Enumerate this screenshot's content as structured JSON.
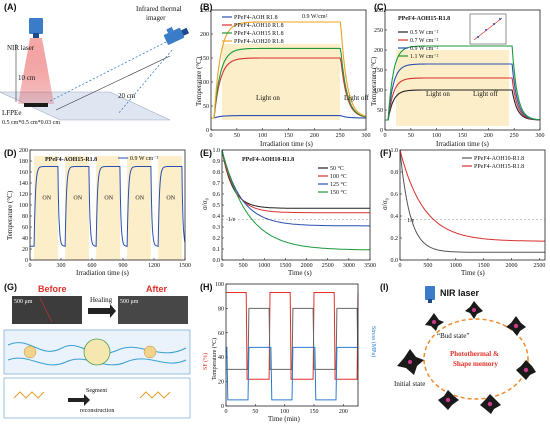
{
  "panels": {
    "A": {
      "label": "(A)",
      "nir": "NIR laser",
      "camera": "Infrared thermal imager",
      "dist1": "10 cm",
      "dist2": "20 cm",
      "sample": "LFPEe",
      "size": "0.5 cm*0.5 cm*0.03 cm"
    },
    "B": {
      "label": "(B)",
      "power": "0.9 W/cm²",
      "on": "Light on",
      "off": "Light off",
      "xlabel": "Irradiation time (s)",
      "ylabel": "Temperature (°C)"
    },
    "C": {
      "label": "(C)",
      "title": "PPeF4-AOH15-R1.8",
      "on": "Light on",
      "off": "Light off",
      "xlabel": "Irradiation time (s)",
      "ylabel": "Temperature (°C)"
    },
    "D": {
      "label": "(D)",
      "title": "PPeF4-AOH15-R1.8",
      "legend": "0.9 W cm⁻²",
      "on": "ON",
      "xlabel": "Irradiation time (s)",
      "ylabel": "Temperature (°C)"
    },
    "E": {
      "label": "(E)",
      "title": "PPeF4-AOH10-R1.8",
      "xlabel": "Time (s)",
      "ylabel": "σ/σ₀",
      "ie": "1/e"
    },
    "F": {
      "label": "(F)",
      "xlabel": "Time (s)",
      "ylabel": "σ/σ₀",
      "ie": "1/e"
    },
    "G": {
      "label": "(G)",
      "before": "Before",
      "after": "After",
      "healing": "Healing",
      "segment": "Segment",
      "recon": "reconstruction",
      "scale": "500 μm"
    },
    "H": {
      "label": "(H)",
      "xlabel": "Time (min)",
      "ylabel_l": "Temperature (°C)",
      "ylabel_r": "Stress (MPa)",
      "ylabel_m": "SF (%)"
    },
    "I": {
      "label": "(I)",
      "nir": "NIR laser",
      "bud": "“Bud state”",
      "pm1": "Photothermal &",
      "pm2": "Shape memory",
      "init": "Initial state"
    }
  },
  "chart_data": [
    {
      "type": "line",
      "panel": "B",
      "x_range": [
        0,
        300
      ],
      "y_range": [
        0,
        250
      ],
      "x_ticks": [
        0,
        50,
        100,
        150,
        200,
        250,
        300
      ],
      "y_ticks": [
        0,
        50,
        100,
        150,
        200,
        250
      ],
      "series": [
        {
          "name": "PPeF4-AOH R1.8",
          "color": "#2a4fb0",
          "plateau": 30
        },
        {
          "name": "PPeF4-AOH10 R1.8",
          "color": "#d83030",
          "plateau": 150
        },
        {
          "name": "PPeF4-AOH15 R1.8",
          "color": "#1a9a3a",
          "plateau": 170
        },
        {
          "name": "PPeF4-AOH20 R1.8",
          "color": "#f0a020",
          "plateau": 225
        }
      ]
    },
    {
      "type": "line",
      "panel": "C",
      "x_range": [
        0,
        300
      ],
      "y_range": [
        0,
        300
      ],
      "x_ticks": [
        0,
        50,
        100,
        150,
        200,
        250,
        300
      ],
      "y_ticks": [
        0,
        50,
        100,
        150,
        200,
        250,
        300
      ],
      "series": [
        {
          "name": "0.5 W cm⁻²",
          "color": "#222222",
          "plateau": 100
        },
        {
          "name": "0.7 W cm⁻²",
          "color": "#d83030",
          "plateau": 130
        },
        {
          "name": "0.9 W cm⁻²",
          "color": "#2a4fb0",
          "plateau": 165
        },
        {
          "name": "1.1 W cm⁻²",
          "color": "#1a9a3a",
          "plateau": 210
        }
      ]
    },
    {
      "type": "line",
      "panel": "D",
      "x_range": [
        0,
        1500
      ],
      "y_range": [
        0,
        200
      ],
      "x_ticks": [
        0,
        300,
        600,
        900,
        1200,
        1500
      ],
      "y_ticks": [
        0,
        20,
        40,
        60,
        80,
        100,
        120,
        140,
        160,
        180,
        200
      ],
      "series": [
        {
          "name": "0.9 W cm⁻²",
          "color": "#2a4fb0",
          "cycles": 5,
          "high": 170,
          "low": 25
        }
      ]
    },
    {
      "type": "line",
      "panel": "E",
      "x_range": [
        0,
        3500
      ],
      "y_range": [
        0,
        1.0
      ],
      "x_ticks": [
        0,
        500,
        1000,
        1500,
        2000,
        2500,
        3000,
        3500
      ],
      "y_ticks": [
        0,
        0.1,
        0.2,
        0.3,
        0.4,
        0.5,
        0.6,
        0.7,
        0.8,
        0.9,
        1.0
      ],
      "series": [
        {
          "name": "50 °C",
          "color": "#222222",
          "final": 0.47
        },
        {
          "name": "100 °C",
          "color": "#d83030",
          "final": 0.43
        },
        {
          "name": "125 °C",
          "color": "#2a4fb0",
          "final": 0.31
        },
        {
          "name": "150 °C",
          "color": "#1a9a3a",
          "final": 0.09
        }
      ]
    },
    {
      "type": "line",
      "panel": "F",
      "x_range": [
        0,
        2600
      ],
      "y_range": [
        0,
        1.0
      ],
      "x_ticks": [
        0,
        500,
        1000,
        1500,
        2000,
        2500
      ],
      "y_ticks": [
        0,
        0.2,
        0.4,
        0.6,
        0.8,
        1.0
      ],
      "series": [
        {
          "name": "PPeF4-AOH10-R1.8",
          "color": "#555555",
          "final": 0.07
        },
        {
          "name": "PPeF4-AOH15-R1.8",
          "color": "#d83030",
          "final": 0.17
        }
      ]
    },
    {
      "type": "line",
      "panel": "H",
      "x_range": [
        0,
        225
      ],
      "y_range": [
        0,
        100
      ],
      "x_ticks": [
        0,
        50,
        100,
        150,
        200
      ],
      "y_ticks": [
        0,
        20,
        40,
        60,
        80,
        100
      ]
    }
  ]
}
